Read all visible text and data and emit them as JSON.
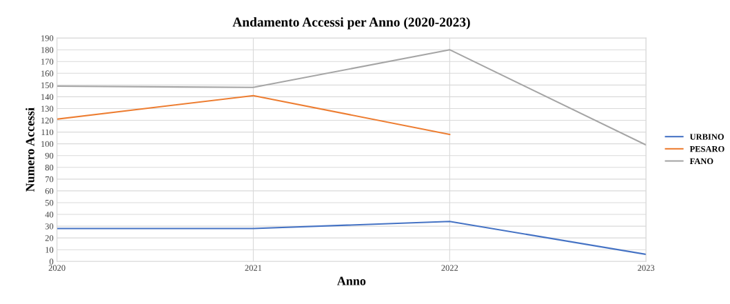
{
  "chart_data": {
    "type": "line",
    "title": "Andamento Accessi per Anno (2020-2023)",
    "xlabel": "Anno",
    "ylabel": "Numero Accessi",
    "x": [
      2020,
      2021,
      2022,
      2023
    ],
    "xlim": [
      2020,
      2023
    ],
    "xticks": [
      2020,
      2021,
      2022,
      2023
    ],
    "ylim": [
      0,
      190
    ],
    "yticks": [
      0,
      10,
      20,
      30,
      40,
      50,
      60,
      70,
      80,
      90,
      100,
      110,
      120,
      130,
      140,
      150,
      160,
      170,
      180,
      190
    ],
    "grid": true,
    "legend": "right",
    "marker": "none",
    "line_style": "solid",
    "series": [
      {
        "name": "URBINO",
        "color": "#4472c4",
        "values": [
          28,
          28,
          34,
          6
        ]
      },
      {
        "name": "PESARO",
        "color": "#ed7d31",
        "values": [
          121,
          141,
          108,
          null
        ]
      },
      {
        "name": "FANO",
        "color": "#a5a5a5",
        "values": [
          149,
          148,
          180,
          99
        ]
      }
    ]
  }
}
